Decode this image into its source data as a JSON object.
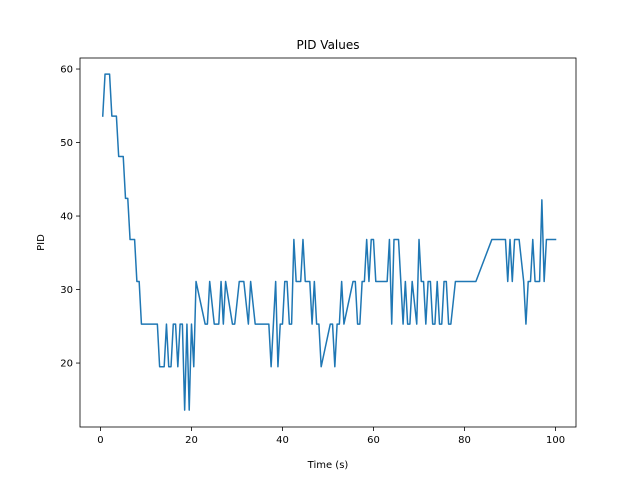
{
  "chart_data": {
    "type": "line",
    "title": "PID Values",
    "xlabel": "Time (s)",
    "ylabel": "PID",
    "xlim": [
      -4.5,
      104.5
    ],
    "ylim": [
      11.3,
      61.5
    ],
    "xticks": [
      0,
      20,
      40,
      60,
      80,
      100
    ],
    "yticks": [
      20,
      30,
      40,
      50,
      60
    ],
    "grid": false,
    "legend": "none",
    "series": [
      {
        "color": "#1f77b4",
        "x": [
          0.5,
          1.0,
          2.0,
          2.5,
          3.5,
          4.0,
          4.5,
          5.0,
          5.5,
          6.0,
          6.5,
          7.0,
          7.5,
          8.0,
          8.5,
          9.0,
          9.5,
          12.5,
          13.0,
          14.0,
          14.5,
          15.0,
          15.5,
          16.0,
          16.5,
          17.0,
          17.5,
          18.0,
          18.5,
          19.0,
          19.5,
          20.0,
          20.5,
          21.0,
          23.0,
          23.5,
          24.0,
          25.0,
          25.5,
          26.0,
          26.5,
          27.0,
          27.5,
          29.0,
          29.5,
          30.5,
          31.0,
          31.5,
          32.5,
          33.0,
          34.0,
          37.0,
          37.5,
          38.0,
          38.5,
          39.0,
          39.5,
          40.0,
          40.5,
          41.0,
          41.5,
          42.0,
          42.5,
          43.0,
          44.0,
          44.5,
          45.0,
          46.0,
          46.5,
          47.0,
          47.5,
          48.0,
          48.5,
          50.5,
          51.0,
          51.5,
          52.0,
          52.5,
          53.0,
          53.5,
          55.5,
          56.0,
          56.5,
          57.0,
          57.5,
          58.0,
          58.5,
          59.0,
          59.5,
          60.0,
          60.5,
          61.0,
          63.0,
          63.5,
          64.0,
          64.5,
          65.5,
          66.0,
          66.5,
          67.0,
          67.5,
          68.0,
          68.5,
          69.5,
          70.0,
          70.5,
          71.0,
          71.5,
          72.0,
          72.5,
          73.0,
          73.5,
          74.0,
          74.5,
          75.0,
          75.5,
          76.0,
          76.5,
          77.0,
          78.0,
          78.5,
          79.0,
          79.5,
          80.0,
          80.5,
          81.0,
          81.5,
          82.0,
          82.5,
          86.0,
          86.5,
          88.5,
          89.0,
          89.5,
          90.0,
          90.5,
          91.0,
          92.0,
          93.0,
          93.5,
          94.0,
          94.5,
          95.0,
          95.5,
          96.5,
          97.0,
          97.5,
          98.0,
          98.5,
          99.0,
          100.0
        ],
        "y": [
          53.6,
          59.3,
          59.3,
          53.6,
          53.6,
          48.1,
          48.1,
          48.1,
          42.4,
          42.4,
          36.8,
          36.8,
          36.8,
          31.1,
          31.1,
          25.3,
          25.3,
          25.3,
          19.5,
          19.5,
          25.3,
          19.5,
          19.5,
          25.3,
          25.3,
          19.5,
          25.3,
          25.3,
          13.6,
          25.3,
          13.6,
          25.3,
          19.5,
          31.1,
          25.3,
          25.3,
          31.1,
          25.3,
          25.3,
          25.3,
          31.1,
          25.3,
          31.1,
          25.3,
          25.3,
          31.1,
          31.1,
          31.1,
          25.3,
          31.1,
          25.3,
          25.3,
          19.5,
          25.3,
          31.1,
          19.5,
          25.3,
          25.3,
          31.1,
          31.1,
          25.3,
          25.3,
          36.8,
          31.1,
          31.1,
          36.8,
          31.1,
          31.1,
          25.3,
          31.1,
          25.3,
          25.3,
          19.5,
          25.3,
          25.3,
          19.5,
          25.3,
          25.3,
          31.1,
          25.3,
          31.1,
          31.1,
          25.3,
          25.3,
          31.1,
          31.1,
          36.8,
          31.1,
          36.8,
          36.8,
          31.1,
          31.1,
          31.1,
          36.8,
          25.3,
          36.8,
          36.8,
          31.1,
          25.3,
          31.1,
          25.3,
          25.3,
          31.1,
          25.3,
          36.8,
          31.1,
          31.1,
          25.3,
          31.1,
          31.1,
          25.3,
          25.3,
          31.1,
          25.3,
          25.3,
          31.1,
          31.1,
          25.3,
          25.3,
          31.1,
          31.1,
          31.1,
          31.1,
          31.1,
          31.1,
          31.1,
          31.1,
          31.1,
          31.1,
          36.8,
          36.8,
          36.8,
          36.8,
          31.1,
          36.8,
          31.1,
          36.8,
          36.8,
          31.1,
          25.3,
          31.1,
          31.1,
          36.8,
          31.1,
          31.1,
          42.2,
          31.1,
          36.8,
          36.8,
          36.8,
          36.8
        ]
      }
    ]
  }
}
